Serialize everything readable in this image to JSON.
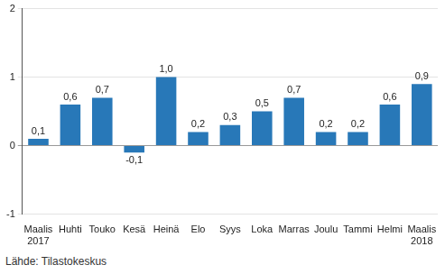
{
  "chart_data": {
    "type": "bar",
    "categories": [
      [
        "Maalis",
        "2017"
      ],
      "Huhti",
      "Touko",
      "Kesä",
      "Heinä",
      "Elo",
      "Syys",
      "Loka",
      "Marras",
      "Joulu",
      "Tammi",
      "Helmi",
      [
        "Maalis",
        "2018"
      ]
    ],
    "values": [
      0.1,
      0.6,
      0.7,
      -0.1,
      1.0,
      0.2,
      0.3,
      0.5,
      0.7,
      0.2,
      0.2,
      0.6,
      0.9
    ],
    "value_labels": [
      "0,1",
      "0,6",
      "0,7",
      "-0,1",
      "1,0",
      "0,2",
      "0,3",
      "0,5",
      "0,7",
      "0,2",
      "0,2",
      "0,6",
      "0,9"
    ],
    "data_labels": true,
    "color": "#2878b8",
    "ylim": [
      -1,
      2
    ],
    "yticks": [
      -1,
      0,
      1,
      2
    ],
    "grid": true,
    "annotation": "Lähde: Tilastokeskus"
  }
}
